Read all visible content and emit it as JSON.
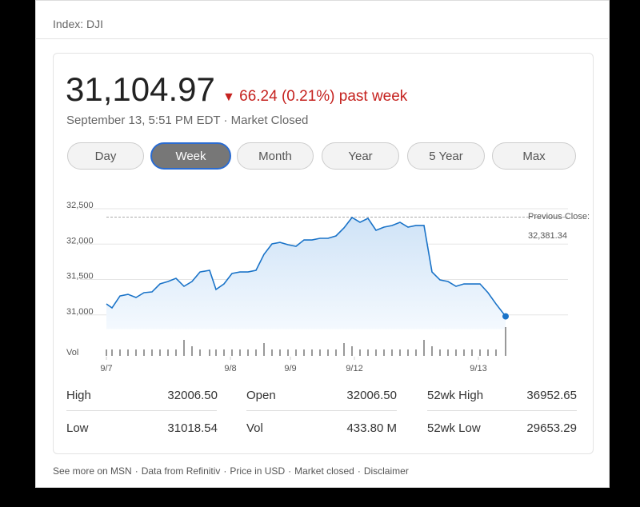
{
  "header": {
    "index": "Index: DJI",
    "price": "31,104.97",
    "change": "66.24 (0.21%) past week",
    "date": "September 13, 5:51 PM EDT",
    "status": "Market Closed"
  },
  "tabs": [
    "Day",
    "Week",
    "Month",
    "Year",
    "5 Year",
    "Max"
  ],
  "selected_tab": 1,
  "chart_data": {
    "type": "line",
    "color": "#1a73c8",
    "x": [
      0,
      1.4,
      3.4,
      5.4,
      7.4,
      9.4,
      11.4,
      13.4,
      15.4,
      17.4,
      19.4,
      21.4,
      23.4,
      25.8,
      27.4,
      29.4,
      31.4,
      33.4,
      35.4,
      37.4,
      39.4,
      41.4,
      43.4,
      45.4,
      47.4,
      49.4,
      51.4,
      53.4,
      55.4,
      57.4,
      59.4,
      61.4,
      63.4,
      65.4,
      67.4,
      69.4,
      71.4,
      73.4,
      75.4,
      77.4,
      79.4,
      81.4,
      83.4,
      85.4,
      87.4,
      89.4,
      91.4,
      93.4,
      95.4,
      97.4,
      99.8
    ],
    "values": [
      31155,
      31099,
      31268,
      31291,
      31246,
      31314,
      31325,
      31438,
      31472,
      31517,
      31404,
      31472,
      31607,
      31630,
      31359,
      31438,
      31585,
      31607,
      31607,
      31630,
      31856,
      32003,
      32025,
      31992,
      31969,
      32059,
      32059,
      32082,
      32082,
      32116,
      32229,
      32376,
      32308,
      32364,
      32195,
      32240,
      32263,
      32308,
      32240,
      32263,
      32263,
      31607,
      31494,
      31472,
      31404,
      31438,
      31438,
      31438,
      31314,
      31155,
      30980
    ],
    "xlim": [
      0,
      100
    ],
    "xticks": [
      {
        "value": 0,
        "label": "9/7"
      },
      {
        "value": 31,
        "label": "9/8"
      },
      {
        "value": 46,
        "label": "9/9"
      },
      {
        "value": 62,
        "label": "9/12"
      },
      {
        "value": 93,
        "label": "9/13"
      }
    ],
    "ylim": [
      30800,
      32500
    ],
    "yticks": [
      {
        "value": 31000,
        "label": "31,000"
      },
      {
        "value": 31500,
        "label": "31,500"
      },
      {
        "value": 32000,
        "label": "32,000"
      },
      {
        "value": 32500,
        "label": "32,500"
      }
    ],
    "grid": true,
    "previous_close": {
      "label": "Previous Close:",
      "value": 32381.34,
      "value_label": "32,381.34"
    },
    "volume": {
      "label": "Vol",
      "color": "#999999",
      "ylim": [
        0,
        10
      ],
      "values": [
        2,
        2,
        2,
        2,
        2,
        2,
        2,
        2,
        2,
        2,
        5,
        3,
        2,
        2,
        2,
        2,
        2,
        2,
        2,
        2,
        4,
        2,
        2,
        2,
        2,
        2,
        2,
        2,
        2,
        2,
        4,
        3,
        2,
        2,
        2,
        2,
        2,
        2,
        2,
        2,
        5,
        3,
        2,
        2,
        2,
        2,
        2,
        2,
        2,
        2,
        9
      ]
    }
  },
  "stats": [
    [
      "High",
      "32006.50",
      "Open",
      "32006.50",
      "52wk High",
      "36952.65"
    ],
    [
      "Low",
      "31018.54",
      "Vol",
      "433.80 M",
      "52wk Low",
      "29653.29"
    ]
  ],
  "footer": [
    "See more on MSN",
    "Data from Refinitiv",
    "Price in USD",
    "Market closed",
    "Disclaimer"
  ]
}
